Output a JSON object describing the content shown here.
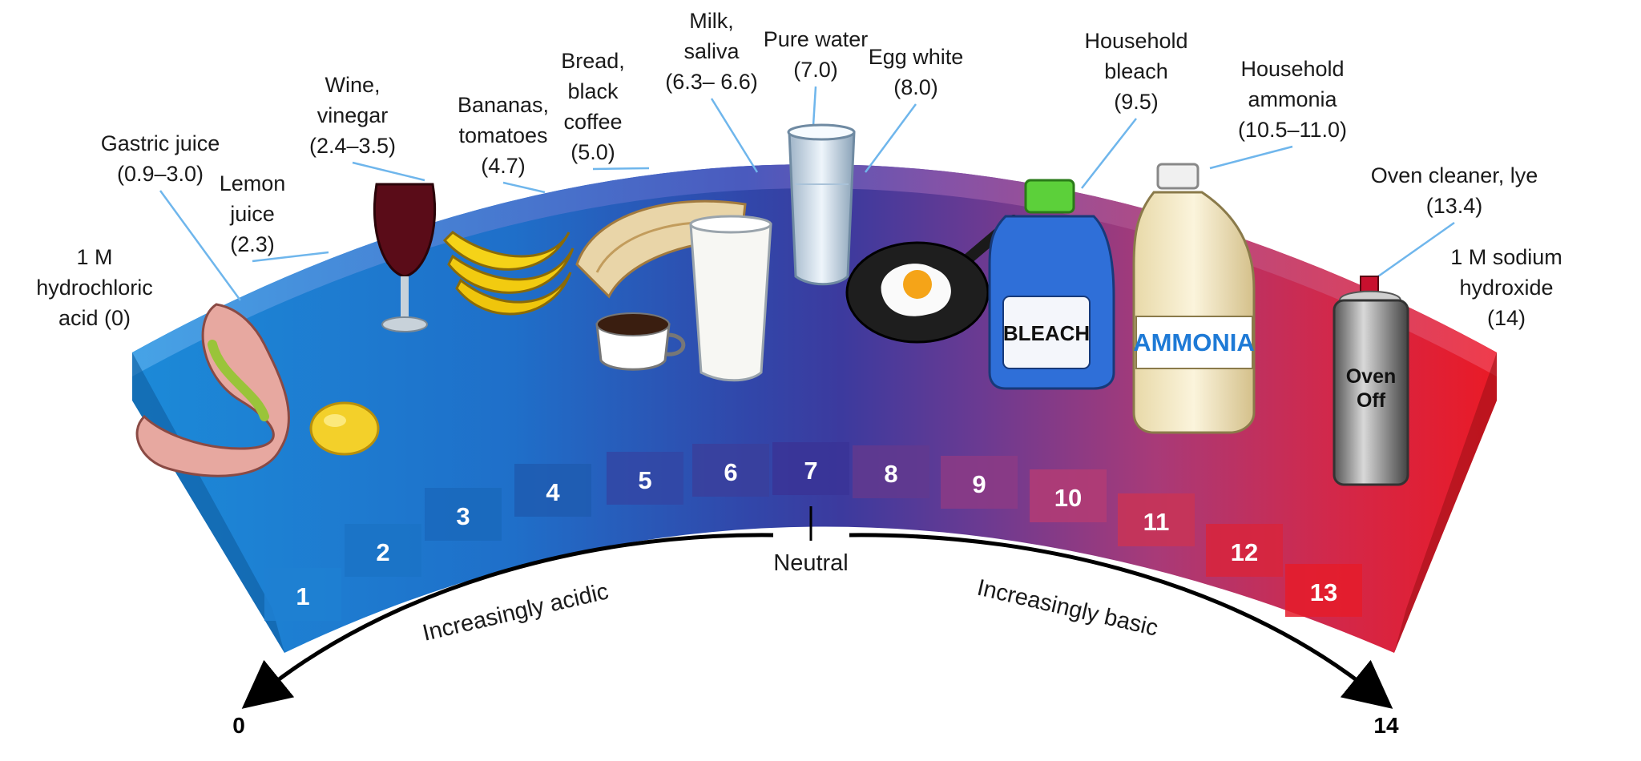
{
  "scale": {
    "min_label": "0",
    "max_label": "14",
    "neutral_label": "Neutral",
    "acidic_label": "Increasingly acidic",
    "basic_label": "Increasingly basic",
    "segment_numbers": [
      "1",
      "2",
      "3",
      "4",
      "5",
      "6",
      "7",
      "8",
      "9",
      "10",
      "11",
      "12",
      "13"
    ],
    "colors": {
      "acid": "#1f86d6",
      "mid_acid": "#2f4fb0",
      "neutral": "#3e3aa0",
      "mid_base": "#8a3a86",
      "base": "#e0182a"
    }
  },
  "substances": [
    {
      "id": "hcl",
      "lines": [
        "1 M",
        "hydrochloric",
        "acid (0)"
      ],
      "ph": 0,
      "icon": "hydrochloric-acid"
    },
    {
      "id": "gastric",
      "lines": [
        "Gastric juice",
        "(0.9–3.0)"
      ],
      "ph": 1.9,
      "icon": "stomach-icon"
    },
    {
      "id": "lemon",
      "lines": [
        "Lemon",
        "juice",
        "(2.3)"
      ],
      "ph": 2.3,
      "icon": "lemon-icon"
    },
    {
      "id": "wine",
      "lines": [
        "Wine,",
        "vinegar",
        "(2.4–3.5)"
      ],
      "ph": 3.0,
      "icon": "wine-glass-icon"
    },
    {
      "id": "bananas",
      "lines": [
        "Bananas,",
        "tomatoes",
        "(4.7)"
      ],
      "ph": 4.7,
      "icon": "bananas-icon"
    },
    {
      "id": "bread",
      "lines": [
        "Bread,",
        "black",
        "coffee",
        "(5.0)"
      ],
      "ph": 5.0,
      "icon": "bread-coffee-icon"
    },
    {
      "id": "milk",
      "lines": [
        "Milk,",
        "saliva",
        "(6.3– 6.6)"
      ],
      "ph": 6.45,
      "icon": "milk-glass-icon"
    },
    {
      "id": "water",
      "lines": [
        "Pure water",
        "(7.0)"
      ],
      "ph": 7.0,
      "icon": "water-glass-icon"
    },
    {
      "id": "egg",
      "lines": [
        "Egg white",
        "(8.0)"
      ],
      "ph": 8.0,
      "icon": "egg-pan-icon"
    },
    {
      "id": "bleach",
      "lines": [
        "Household",
        "bleach",
        "(9.5)"
      ],
      "ph": 9.5,
      "icon": "bleach-bottle-icon",
      "bottle_text": "BLEACH"
    },
    {
      "id": "ammonia",
      "lines": [
        "Household",
        "ammonia",
        "(10.5–11.0)"
      ],
      "ph": 10.75,
      "icon": "ammonia-jug-icon",
      "bottle_text": "AMMONIA"
    },
    {
      "id": "oven",
      "lines": [
        "Oven cleaner, lye",
        "(13.4)"
      ],
      "ph": 13.4,
      "icon": "oven-cleaner-can-icon",
      "bottle_text": "Oven Off"
    },
    {
      "id": "naoh",
      "lines": [
        "1 M sodium",
        "hydroxide",
        "(14)"
      ],
      "ph": 14,
      "icon": "sodium-hydroxide"
    }
  ]
}
